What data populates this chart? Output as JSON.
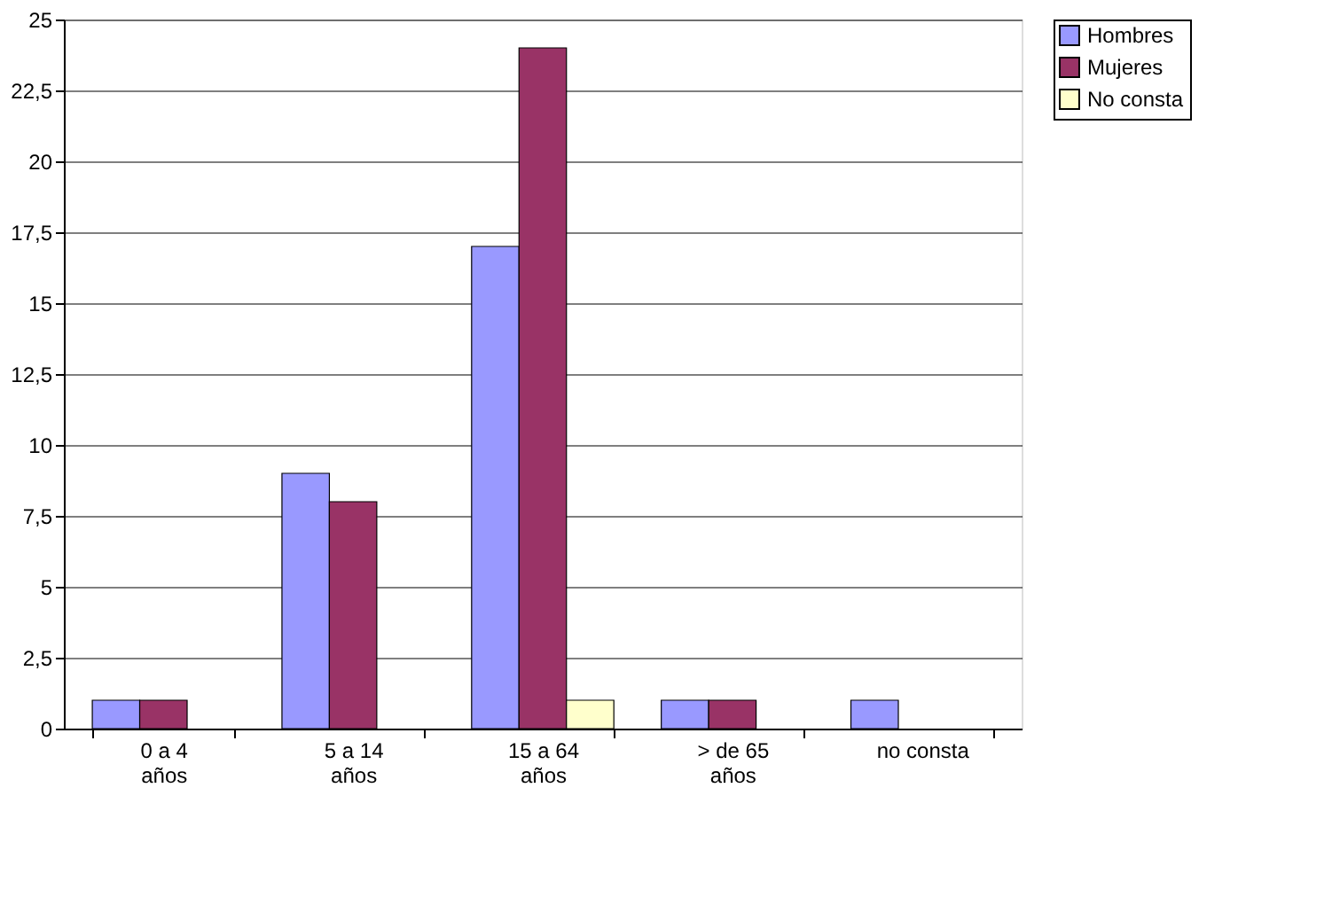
{
  "chart_data": {
    "type": "bar",
    "categories": [
      "0 a 4 años",
      "5 a 14 años",
      "15 a 64 años",
      "> de 65 años",
      "no consta"
    ],
    "series": [
      {
        "name": "Hombres",
        "color": "#9999ff",
        "values": [
          1,
          9,
          17,
          1,
          1
        ]
      },
      {
        "name": "Mujeres",
        "color": "#993366",
        "values": [
          1,
          8,
          24,
          1,
          0
        ]
      },
      {
        "name": "No consta",
        "color": "#ffffcc",
        "values": [
          0,
          0,
          1,
          0,
          0
        ]
      }
    ],
    "ylim": [
      0,
      25
    ],
    "yticks": [
      0,
      {
        "value": 2.5,
        "label": "2,5"
      },
      5,
      {
        "value": 7.5,
        "label": "7,5"
      },
      10,
      {
        "value": 12.5,
        "label": "12,5"
      },
      15,
      {
        "value": 17.5,
        "label": "17,5"
      },
      20,
      {
        "value": 22.5,
        "label": "22,5"
      },
      25
    ],
    "grid": "y",
    "legend": "right"
  }
}
